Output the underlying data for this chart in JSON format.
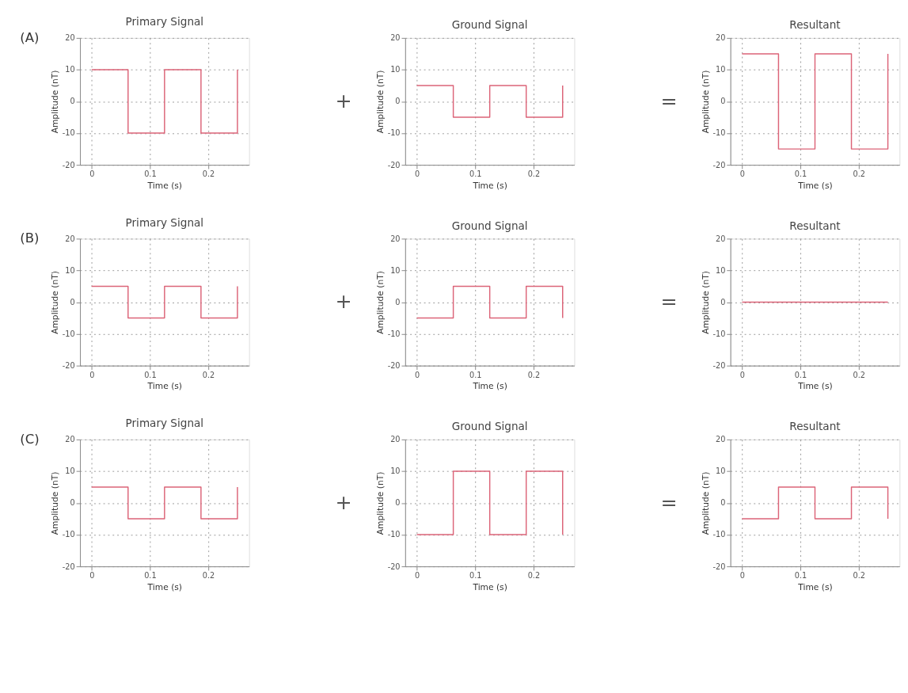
{
  "chart_data": [
    {
      "type": "step",
      "title": "Primary Signal",
      "xlabel": "Time (s)",
      "ylabel": "Amplitude (nT)",
      "annotations": [
        "(A)"
      ],
      "x": [
        0,
        0.0625,
        0.125,
        0.1875,
        0.25,
        0.25
      ],
      "values": [
        10,
        -10,
        10,
        -10,
        -10,
        10
      ],
      "color": "#dc6478",
      "xlim": [
        -0.02,
        0.27
      ],
      "ylim": [
        -20,
        20
      ],
      "xticks": [
        0,
        0.1,
        0.2
      ],
      "yticks": [
        -20,
        -10,
        0,
        10,
        20
      ],
      "grid": true
    },
    {
      "type": "step",
      "title": "Ground Signal",
      "xlabel": "Time (s)",
      "ylabel": "Amplitude (nT)",
      "annotations": [
        "+"
      ],
      "x": [
        0,
        0.0625,
        0.125,
        0.1875,
        0.25,
        0.25
      ],
      "values": [
        5,
        -5,
        5,
        -5,
        -5,
        5
      ],
      "color": "#dc6478",
      "xlim": [
        -0.02,
        0.27
      ],
      "ylim": [
        -20,
        20
      ],
      "xticks": [
        0,
        0.1,
        0.2
      ],
      "yticks": [
        -20,
        -10,
        0,
        10,
        20
      ],
      "grid": true
    },
    {
      "type": "step",
      "title": "Resultant",
      "xlabel": "Time (s)",
      "ylabel": "Amplitude (nT)",
      "annotations": [
        "="
      ],
      "x": [
        0,
        0.0625,
        0.125,
        0.1875,
        0.25,
        0.25
      ],
      "values": [
        15,
        -15,
        15,
        -15,
        -15,
        15
      ],
      "color": "#dc6478",
      "xlim": [
        -0.02,
        0.27
      ],
      "ylim": [
        -20,
        20
      ],
      "xticks": [
        0,
        0.1,
        0.2
      ],
      "yticks": [
        -20,
        -10,
        0,
        10,
        20
      ],
      "grid": true
    },
    {
      "type": "step",
      "title": "Primary Signal",
      "xlabel": "Time (s)",
      "ylabel": "Amplitude (nT)",
      "annotations": [
        "(B)"
      ],
      "x": [
        0,
        0.0625,
        0.125,
        0.1875,
        0.25,
        0.25
      ],
      "values": [
        5,
        -5,
        5,
        -5,
        -5,
        5
      ],
      "color": "#dc6478",
      "xlim": [
        -0.02,
        0.27
      ],
      "ylim": [
        -20,
        20
      ],
      "xticks": [
        0,
        0.1,
        0.2
      ],
      "yticks": [
        -20,
        -10,
        0,
        10,
        20
      ],
      "grid": true
    },
    {
      "type": "step",
      "title": "Ground Signal",
      "xlabel": "Time (s)",
      "ylabel": "Amplitude (nT)",
      "annotations": [
        "+"
      ],
      "x": [
        0,
        0.0625,
        0.125,
        0.1875,
        0.25,
        0.25
      ],
      "values": [
        -5,
        5,
        -5,
        5,
        5,
        -5
      ],
      "color": "#dc6478",
      "xlim": [
        -0.02,
        0.27
      ],
      "ylim": [
        -20,
        20
      ],
      "xticks": [
        0,
        0.1,
        0.2
      ],
      "yticks": [
        -20,
        -10,
        0,
        10,
        20
      ],
      "grid": true
    },
    {
      "type": "step",
      "title": "Resultant",
      "xlabel": "Time (s)",
      "ylabel": "Amplitude (nT)",
      "annotations": [
        "="
      ],
      "x": [
        0,
        0.25
      ],
      "values": [
        0,
        0
      ],
      "color": "#dc6478",
      "xlim": [
        -0.02,
        0.27
      ],
      "ylim": [
        -20,
        20
      ],
      "xticks": [
        0,
        0.1,
        0.2
      ],
      "yticks": [
        -20,
        -10,
        0,
        10,
        20
      ],
      "grid": true
    },
    {
      "type": "step",
      "title": "Primary Signal",
      "xlabel": "Time (s)",
      "ylabel": "Amplitude (nT)",
      "annotations": [
        "(C)"
      ],
      "x": [
        0,
        0.0625,
        0.125,
        0.1875,
        0.25,
        0.25
      ],
      "values": [
        5,
        -5,
        5,
        -5,
        -5,
        5
      ],
      "color": "#dc6478",
      "xlim": [
        -0.02,
        0.27
      ],
      "ylim": [
        -20,
        20
      ],
      "xticks": [
        0,
        0.1,
        0.2
      ],
      "yticks": [
        -20,
        -10,
        0,
        10,
        20
      ],
      "grid": true
    },
    {
      "type": "step",
      "title": "Ground Signal",
      "xlabel": "Time (s)",
      "ylabel": "Amplitude (nT)",
      "annotations": [
        "+"
      ],
      "x": [
        0,
        0.0625,
        0.125,
        0.1875,
        0.25,
        0.25
      ],
      "values": [
        -10,
        10,
        -10,
        10,
        10,
        -10
      ],
      "color": "#dc6478",
      "xlim": [
        -0.02,
        0.27
      ],
      "ylim": [
        -20,
        20
      ],
      "xticks": [
        0,
        0.1,
        0.2
      ],
      "yticks": [
        -20,
        -10,
        0,
        10,
        20
      ],
      "grid": true
    },
    {
      "type": "step",
      "title": "Resultant",
      "xlabel": "Time (s)",
      "ylabel": "Amplitude (nT)",
      "annotations": [
        "="
      ],
      "x": [
        0,
        0.0625,
        0.125,
        0.1875,
        0.25,
        0.25
      ],
      "values": [
        -5,
        5,
        -5,
        5,
        5,
        -5
      ],
      "color": "#dc6478",
      "xlim": [
        -0.02,
        0.27
      ],
      "ylim": [
        -20,
        20
      ],
      "xticks": [
        0,
        0.1,
        0.2
      ],
      "yticks": [
        -20,
        -10,
        0,
        10,
        20
      ],
      "grid": true
    }
  ]
}
